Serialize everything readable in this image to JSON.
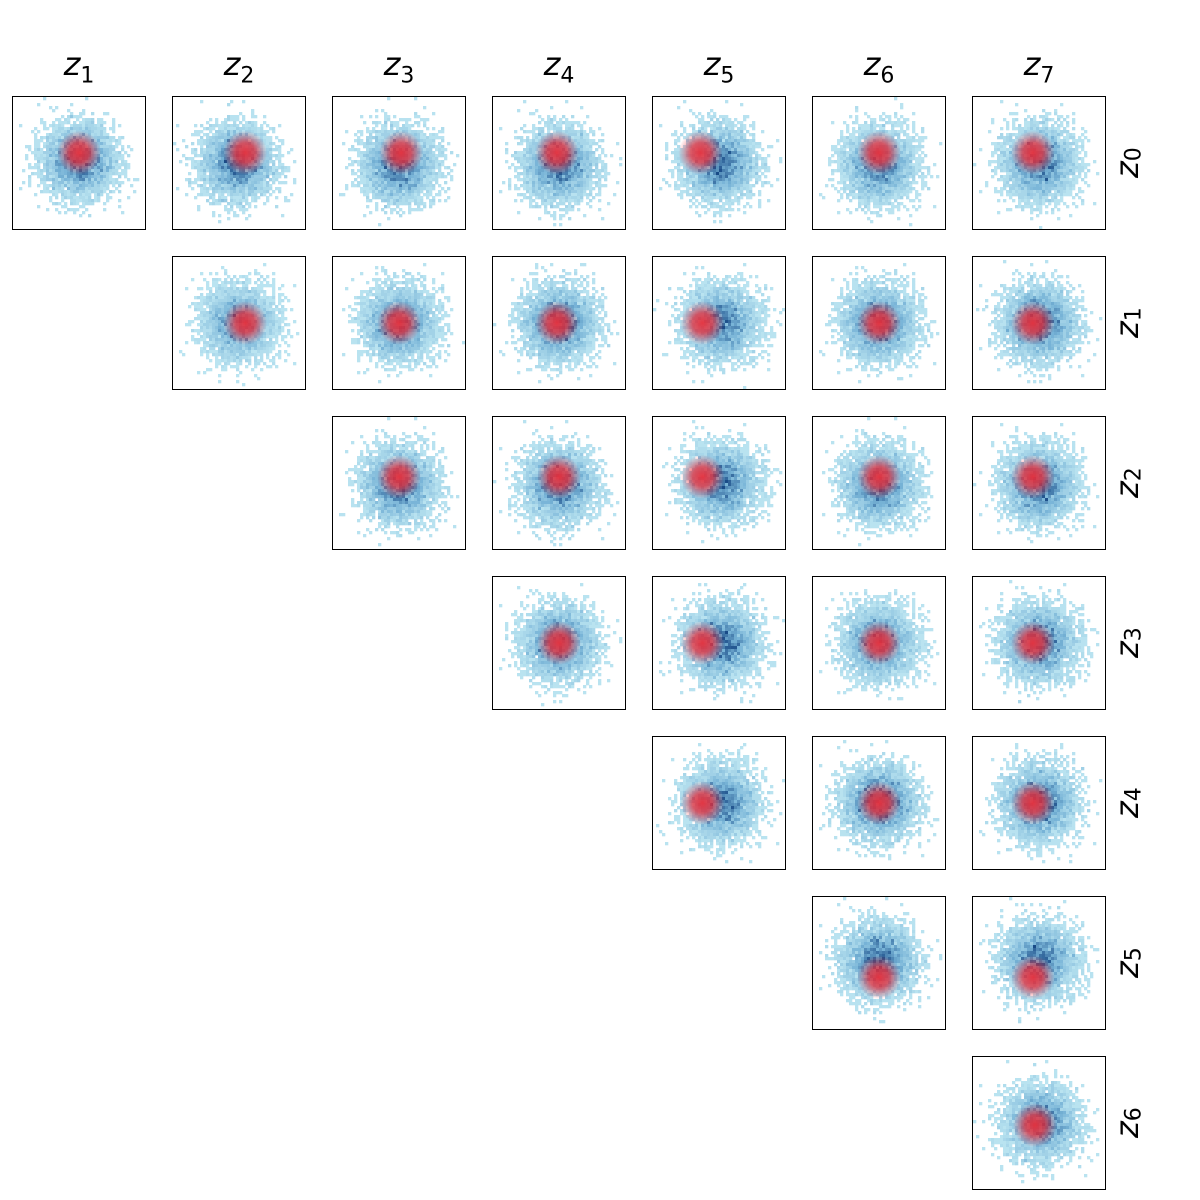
{
  "chart_data": {
    "type": "heatmap",
    "title": "",
    "description_layout": "upper-triangular corner plot",
    "columns": [
      {
        "base": "z",
        "sub": "1"
      },
      {
        "base": "z",
        "sub": "2"
      },
      {
        "base": "z",
        "sub": "3"
      },
      {
        "base": "z",
        "sub": "4"
      },
      {
        "base": "z",
        "sub": "5"
      },
      {
        "base": "z",
        "sub": "6"
      },
      {
        "base": "z",
        "sub": "7"
      }
    ],
    "rows": [
      {
        "base": "z",
        "sub": "0"
      },
      {
        "base": "z",
        "sub": "1"
      },
      {
        "base": "z",
        "sub": "2"
      },
      {
        "base": "z",
        "sub": "3"
      },
      {
        "base": "z",
        "sub": "4"
      },
      {
        "base": "z",
        "sub": "5"
      },
      {
        "base": "z",
        "sub": "6"
      }
    ],
    "colors": {
      "background_density": "#1f4e8a",
      "background_low": "#c6ecf5",
      "highlight": "#e8303c"
    },
    "panels": [
      {
        "row": 0,
        "col": 0,
        "blue_center": [
          0.0,
          0.1
        ],
        "red_center": [
          0.0,
          0.5
        ]
      },
      {
        "row": 0,
        "col": 1,
        "blue_center": [
          -0.1,
          0.0
        ],
        "red_center": [
          0.3,
          0.5
        ]
      },
      {
        "row": 0,
        "col": 2,
        "blue_center": [
          0.0,
          -0.1
        ],
        "red_center": [
          0.1,
          0.5
        ]
      },
      {
        "row": 0,
        "col": 3,
        "blue_center": [
          0.0,
          -0.1
        ],
        "red_center": [
          -0.1,
          0.5
        ]
      },
      {
        "row": 0,
        "col": 4,
        "blue_center": [
          0.0,
          0.0
        ],
        "red_center": [
          -0.9,
          0.5
        ]
      },
      {
        "row": 0,
        "col": 5,
        "blue_center": [
          0.0,
          -0.1
        ],
        "red_center": [
          0.0,
          0.5
        ]
      },
      {
        "row": 0,
        "col": 6,
        "blue_center": [
          0.0,
          0.0
        ],
        "red_center": [
          -0.3,
          0.5
        ]
      },
      {
        "row": 1,
        "col": 1,
        "blue_center": [
          0.0,
          0.0
        ],
        "red_center": [
          0.3,
          0.0
        ]
      },
      {
        "row": 1,
        "col": 2,
        "blue_center": [
          0.0,
          0.0
        ],
        "red_center": [
          0.0,
          0.0
        ]
      },
      {
        "row": 1,
        "col": 3,
        "blue_center": [
          0.0,
          0.0
        ],
        "red_center": [
          -0.1,
          0.0
        ]
      },
      {
        "row": 1,
        "col": 4,
        "blue_center": [
          0.1,
          0.0
        ],
        "red_center": [
          -0.8,
          0.0
        ]
      },
      {
        "row": 1,
        "col": 5,
        "blue_center": [
          0.0,
          0.0
        ],
        "red_center": [
          0.0,
          0.0
        ]
      },
      {
        "row": 1,
        "col": 6,
        "blue_center": [
          0.0,
          0.0
        ],
        "red_center": [
          -0.3,
          0.0
        ]
      },
      {
        "row": 2,
        "col": 2,
        "blue_center": [
          0.0,
          -0.1
        ],
        "red_center": [
          0.0,
          0.3
        ]
      },
      {
        "row": 2,
        "col": 3,
        "blue_center": [
          0.0,
          -0.1
        ],
        "red_center": [
          0.0,
          0.3
        ]
      },
      {
        "row": 2,
        "col": 4,
        "blue_center": [
          0.1,
          0.0
        ],
        "red_center": [
          -0.8,
          0.3
        ]
      },
      {
        "row": 2,
        "col": 5,
        "blue_center": [
          0.0,
          -0.1
        ],
        "red_center": [
          0.0,
          0.3
        ]
      },
      {
        "row": 2,
        "col": 6,
        "blue_center": [
          0.0,
          -0.1
        ],
        "red_center": [
          -0.3,
          0.3
        ]
      },
      {
        "row": 3,
        "col": 3,
        "blue_center": [
          0.0,
          0.0
        ],
        "red_center": [
          0.0,
          0.0
        ]
      },
      {
        "row": 3,
        "col": 4,
        "blue_center": [
          0.1,
          0.0
        ],
        "red_center": [
          -0.8,
          0.0
        ]
      },
      {
        "row": 3,
        "col": 5,
        "blue_center": [
          0.0,
          0.0
        ],
        "red_center": [
          0.0,
          0.0
        ]
      },
      {
        "row": 3,
        "col": 6,
        "blue_center": [
          0.0,
          0.0
        ],
        "red_center": [
          -0.3,
          0.0
        ]
      },
      {
        "row": 4,
        "col": 4,
        "blue_center": [
          0.1,
          0.0
        ],
        "red_center": [
          -0.8,
          0.0
        ]
      },
      {
        "row": 4,
        "col": 5,
        "blue_center": [
          0.0,
          0.0
        ],
        "red_center": [
          0.0,
          0.0
        ]
      },
      {
        "row": 4,
        "col": 6,
        "blue_center": [
          0.0,
          0.0
        ],
        "red_center": [
          -0.3,
          0.0
        ]
      },
      {
        "row": 5,
        "col": 5,
        "blue_center": [
          0.0,
          0.1
        ],
        "red_center": [
          0.0,
          -0.7
        ]
      },
      {
        "row": 5,
        "col": 6,
        "blue_center": [
          0.0,
          0.1
        ],
        "red_center": [
          -0.3,
          -0.7
        ]
      },
      {
        "row": 6,
        "col": 6,
        "blue_center": [
          0.1,
          0.0
        ],
        "red_center": [
          -0.2,
          -0.1
        ]
      }
    ]
  }
}
